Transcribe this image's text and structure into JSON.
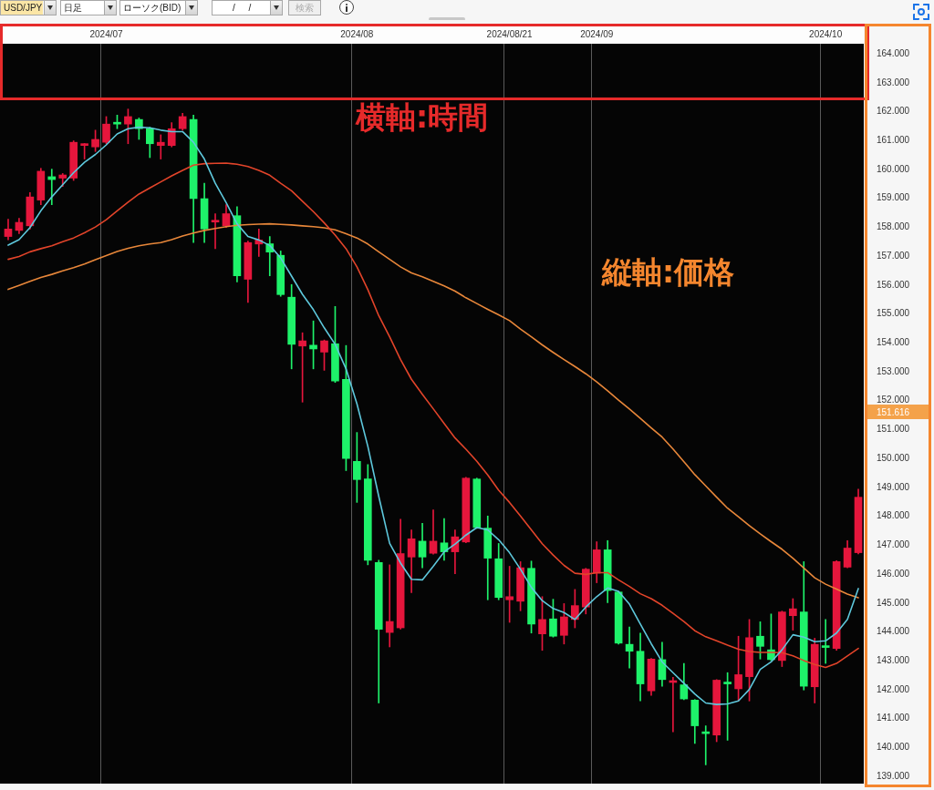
{
  "chart_data": {
    "type": "candlestick",
    "title": "USD/JPY",
    "categories": [
      null,
      null,
      null,
      null,
      null,
      null,
      null,
      null,
      null,
      "2024/07",
      null,
      null,
      null,
      null,
      null,
      null,
      null,
      null,
      null,
      null,
      null,
      null,
      null,
      null,
      null,
      null,
      null,
      null,
      null,
      null,
      null,
      null,
      "2024/08",
      null,
      null,
      null,
      null,
      null,
      null,
      null,
      null,
      null,
      null,
      null,
      null,
      null,
      "2024/08/21",
      null,
      null,
      null,
      null,
      null,
      null,
      null,
      "2024/09",
      null,
      null,
      null,
      null,
      null,
      null,
      null,
      null,
      null,
      null,
      null,
      null,
      null,
      null,
      null,
      null,
      null,
      null,
      null,
      null,
      "2024/10",
      null,
      null,
      null
    ],
    "ohlc": [
      [
        157.68,
        158.28,
        157.57,
        157.94
      ],
      [
        157.89,
        158.31,
        157.78,
        158.17
      ],
      [
        158.05,
        159.2,
        157.94,
        159.05
      ],
      [
        158.94,
        160.04,
        158.78,
        159.94
      ],
      [
        159.75,
        160.01,
        158.78,
        159.65
      ],
      [
        159.7,
        159.86,
        159.41,
        159.81
      ],
      [
        159.7,
        160.99,
        159.62,
        160.94
      ],
      [
        160.83,
        160.9,
        160.36,
        160.86
      ],
      [
        160.78,
        161.36,
        160.62,
        161.04
      ],
      [
        160.94,
        161.83,
        160.89,
        161.57
      ],
      [
        161.62,
        161.88,
        161.41,
        161.57
      ],
      [
        161.57,
        162.09,
        160.89,
        161.83
      ],
      [
        161.73,
        161.78,
        161.04,
        161.41
      ],
      [
        161.41,
        161.46,
        160.41,
        160.89
      ],
      [
        160.83,
        161.2,
        160.36,
        160.94
      ],
      [
        160.83,
        161.62,
        160.78,
        161.41
      ],
      [
        161.41,
        161.94,
        161.36,
        161.83
      ],
      [
        161.73,
        161.88,
        157.47,
        158.99
      ],
      [
        158.99,
        159.52,
        157.47,
        157.94
      ],
      [
        158.18,
        158.47,
        157.26,
        158.22
      ],
      [
        158.05,
        158.78,
        157.99,
        158.47
      ],
      [
        158.4,
        158.71,
        156.11,
        156.32
      ],
      [
        156.2,
        157.52,
        155.4,
        157.47
      ],
      [
        157.42,
        157.94,
        156.99,
        157.56
      ],
      [
        157.43,
        157.68,
        156.32,
        157.14
      ],
      [
        157.03,
        157.18,
        155.61,
        155.67
      ],
      [
        155.58,
        156.02,
        153.1,
        153.95
      ],
      [
        153.89,
        154.35,
        151.95,
        154.07
      ],
      [
        153.92,
        154.76,
        153.1,
        153.79
      ],
      [
        153.68,
        154.1,
        153.05,
        154.07
      ],
      [
        153.97,
        155.26,
        152.63,
        152.68
      ],
      [
        152.74,
        153.91,
        149.58,
        150.0
      ],
      [
        149.9,
        150.9,
        148.48,
        149.27
      ],
      [
        149.29,
        149.79,
        146.32,
        146.48
      ],
      [
        146.4,
        146.48,
        141.54,
        144.09
      ],
      [
        143.98,
        146.32,
        143.48,
        144.36
      ],
      [
        144.14,
        147.9,
        144.1,
        146.71
      ],
      [
        146.59,
        147.53,
        145.36,
        147.22
      ],
      [
        147.14,
        147.76,
        146.22,
        146.59
      ],
      [
        146.72,
        148.22,
        146.69,
        147.14
      ],
      [
        147.08,
        147.92,
        146.48,
        146.77
      ],
      [
        146.77,
        147.53,
        146.01,
        147.29
      ],
      [
        147.11,
        149.35,
        147.08,
        149.32
      ],
      [
        149.29,
        149.32,
        147.58,
        147.61
      ],
      [
        147.59,
        148.01,
        145.11,
        146.55
      ],
      [
        146.53,
        147.06,
        145.11,
        145.19
      ],
      [
        145.11,
        146.27,
        144.33,
        145.22
      ],
      [
        145.06,
        146.43,
        144.73,
        146.22
      ],
      [
        146.2,
        146.45,
        143.96,
        144.27
      ],
      [
        143.93,
        145.22,
        143.36,
        144.43
      ],
      [
        144.45,
        145.13,
        143.82,
        143.85
      ],
      [
        143.88,
        144.98,
        143.58,
        144.52
      ],
      [
        144.43,
        145.47,
        144.14,
        144.91
      ],
      [
        144.86,
        146.2,
        144.62,
        146.17
      ],
      [
        146.03,
        147.12,
        145.7,
        146.84
      ],
      [
        146.84,
        147.16,
        145.01,
        145.43
      ],
      [
        145.38,
        145.4,
        143.58,
        143.61
      ],
      [
        143.57,
        144.17,
        142.75,
        143.33
      ],
      [
        143.33,
        143.96,
        141.61,
        142.2
      ],
      [
        141.96,
        143.08,
        141.8,
        143.06
      ],
      [
        143.04,
        143.64,
        142.12,
        142.35
      ],
      [
        142.25,
        142.43,
        140.54,
        142.28
      ],
      [
        142.17,
        142.91,
        141.65,
        141.68
      ],
      [
        141.64,
        141.66,
        140.14,
        140.75
      ],
      [
        140.52,
        140.75,
        139.4,
        140.48
      ],
      [
        140.43,
        142.35,
        140.2,
        142.33
      ],
      [
        142.24,
        142.59,
        140.25,
        142.2
      ],
      [
        142.03,
        143.85,
        141.61,
        142.52
      ],
      [
        142.45,
        144.43,
        141.61,
        143.8
      ],
      [
        143.85,
        144.35,
        143.06,
        143.5
      ],
      [
        143.38,
        144.62,
        143.01,
        143.04
      ],
      [
        143.01,
        144.72,
        142.8,
        144.69
      ],
      [
        144.56,
        145.15,
        144.06,
        144.8
      ],
      [
        144.69,
        146.43,
        141.99,
        142.12
      ],
      [
        142.1,
        143.78,
        141.54,
        143.57
      ],
      [
        143.5,
        144.43,
        142.91,
        143.46
      ],
      [
        143.43,
        146.46,
        143.36,
        146.43
      ],
      [
        146.24,
        147.16,
        146.22,
        146.9
      ],
      [
        146.74,
        148.94,
        146.7,
        148.66
      ]
    ],
    "colors": [
      "#e5163c",
      "#e5163c",
      "#e5163c",
      "#e5163c",
      "#1ef26a",
      "#e5163c",
      "#e5163c",
      "#e5163c",
      "#e5163c",
      "#e5163c",
      "#1ef26a",
      "#e5163c",
      "#1ef26a",
      "#1ef26a",
      "#e5163c",
      "#e5163c",
      "#e5163c",
      "#1ef26a",
      "#1ef26a",
      "#e5163c",
      "#e5163c",
      "#1ef26a",
      "#e5163c",
      "#e5163c",
      "#1ef26a",
      "#1ef26a",
      "#1ef26a",
      "#e5163c",
      "#1ef26a",
      "#e5163c",
      "#1ef26a",
      "#1ef26a",
      "#1ef26a",
      "#1ef26a",
      "#1ef26a",
      "#e5163c",
      "#e5163c",
      "#e5163c",
      "#1ef26a",
      "#e5163c",
      "#1ef26a",
      "#e5163c",
      "#e5163c",
      "#1ef26a",
      "#1ef26a",
      "#1ef26a",
      "#e5163c",
      "#e5163c",
      "#1ef26a",
      "#e5163c",
      "#1ef26a",
      "#e5163c",
      "#e5163c",
      "#e5163c",
      "#e5163c",
      "#1ef26a",
      "#1ef26a",
      "#1ef26a",
      "#1ef26a",
      "#e5163c",
      "#1ef26a",
      "#e5163c",
      "#1ef26a",
      "#1ef26a",
      "#1ef26a",
      "#e5163c",
      "#1ef26a",
      "#e5163c",
      "#e5163c",
      "#1ef26a",
      "#1ef26a",
      "#e5163c",
      "#e5163c",
      "#1ef26a",
      "#e5163c",
      "#1ef26a",
      "#e5163c",
      "#e5163c",
      "#e5163c"
    ],
    "series": [
      {
        "type": "line",
        "color": "#5ec8dc",
        "values": [
          157.38,
          157.57,
          157.99,
          158.57,
          159.05,
          159.47,
          159.89,
          160.25,
          160.52,
          160.85,
          161.23,
          161.41,
          161.46,
          161.44,
          161.36,
          161.31,
          161.31,
          160.94,
          160.36,
          159.52,
          158.85,
          158.12,
          157.68,
          157.56,
          157.37,
          156.94,
          156.31,
          155.68,
          155.15,
          154.52,
          153.95,
          153.1,
          151.89,
          150.42,
          148.69,
          147.06,
          146.38,
          145.82,
          145.8,
          146.27,
          146.77,
          147.04,
          147.35,
          147.61,
          147.53,
          147.19,
          146.74,
          146.17,
          145.54,
          145.08,
          144.81,
          144.67,
          144.43,
          144.86,
          145.22,
          145.52,
          145.4,
          144.96,
          144.27,
          143.59,
          142.96,
          142.59,
          142.22,
          141.85,
          141.54,
          141.49,
          141.51,
          141.61,
          142.01,
          142.7,
          142.96,
          143.38,
          143.9,
          143.82,
          143.66,
          143.69,
          143.96,
          144.43,
          145.5
        ]
      },
      {
        "type": "line",
        "color": "#e2442a",
        "values": [
          156.89,
          156.99,
          157.15,
          157.26,
          157.36,
          157.5,
          157.63,
          157.81,
          158.01,
          158.26,
          158.57,
          158.87,
          159.15,
          159.36,
          159.57,
          159.78,
          159.97,
          160.15,
          160.2,
          160.21,
          160.22,
          160.18,
          160.1,
          159.97,
          159.8,
          159.52,
          159.26,
          158.9,
          158.54,
          158.15,
          157.73,
          157.26,
          156.63,
          155.84,
          154.94,
          154.21,
          153.42,
          152.74,
          152.22,
          151.72,
          151.21,
          150.71,
          150.32,
          149.9,
          149.43,
          148.9,
          148.48,
          148.01,
          147.53,
          147.05,
          146.66,
          146.3,
          146.03,
          145.99,
          146.05,
          146.05,
          145.8,
          145.57,
          145.32,
          145.15,
          144.92,
          144.64,
          144.36,
          144.04,
          143.83,
          143.69,
          143.54,
          143.4,
          143.32,
          143.29,
          143.29,
          143.28,
          143.17,
          143.01,
          142.87,
          142.77,
          142.91,
          143.17,
          143.43
        ]
      },
      {
        "type": "line",
        "color": "#e8873a",
        "values": [
          155.85,
          155.99,
          156.13,
          156.26,
          156.37,
          156.49,
          156.6,
          156.73,
          156.88,
          157.02,
          157.16,
          157.27,
          157.36,
          157.42,
          157.47,
          157.57,
          157.7,
          157.8,
          157.89,
          157.96,
          158.02,
          158.07,
          158.09,
          158.11,
          158.12,
          158.1,
          158.08,
          158.05,
          158.02,
          157.98,
          157.91,
          157.78,
          157.63,
          157.42,
          157.15,
          156.89,
          156.63,
          156.42,
          156.29,
          156.13,
          155.97,
          155.79,
          155.56,
          155.36,
          155.16,
          154.97,
          154.77,
          154.48,
          154.21,
          153.93,
          153.67,
          153.42,
          153.18,
          152.93,
          152.65,
          152.34,
          152.02,
          151.71,
          151.39,
          151.06,
          150.74,
          150.33,
          149.89,
          149.44,
          149.05,
          148.66,
          148.28,
          147.98,
          147.68,
          147.39,
          147.12,
          146.86,
          146.55,
          146.21,
          145.87,
          145.65,
          145.48,
          145.31,
          145.18
        ]
      }
    ],
    "ylim": [
      138.75,
      164.35
    ],
    "yticks": [
      {
        "value": 139,
        "label": "139.000"
      },
      {
        "value": 140,
        "label": "140.000"
      },
      {
        "value": 141,
        "label": "141.000"
      },
      {
        "value": 142,
        "label": "142.000"
      },
      {
        "value": 143,
        "label": "143.000"
      },
      {
        "value": 144,
        "label": "144.000"
      },
      {
        "value": 145,
        "label": "145.000"
      },
      {
        "value": 146,
        "label": "146.000"
      },
      {
        "value": 147,
        "label": "147.000"
      },
      {
        "value": 148,
        "label": "148.000"
      },
      {
        "value": 149,
        "label": "149.000"
      },
      {
        "value": 150,
        "label": "150.000"
      },
      {
        "value": 151,
        "label": "151.000"
      },
      {
        "value": 152,
        "label": "152.000"
      },
      {
        "value": 153,
        "label": "153.000"
      },
      {
        "value": 154,
        "label": "154.000"
      },
      {
        "value": 155,
        "label": "155.000"
      },
      {
        "value": 156,
        "label": "156.000"
      },
      {
        "value": 157,
        "label": "157.000"
      },
      {
        "value": 158,
        "label": "158.000"
      },
      {
        "value": 159,
        "label": "159.000"
      },
      {
        "value": 160,
        "label": "160.000"
      },
      {
        "value": 161,
        "label": "161.000"
      },
      {
        "value": 162,
        "label": "162.000"
      },
      {
        "value": 163,
        "label": "163.000"
      },
      {
        "value": 164,
        "label": "164.000"
      }
    ],
    "grid": "x",
    "annotations": [
      "日足",
      "ローソク(BID)",
      "/ /",
      "検索",
      "横軸:時間",
      "縦軸:価格",
      "151.616"
    ]
  }
}
